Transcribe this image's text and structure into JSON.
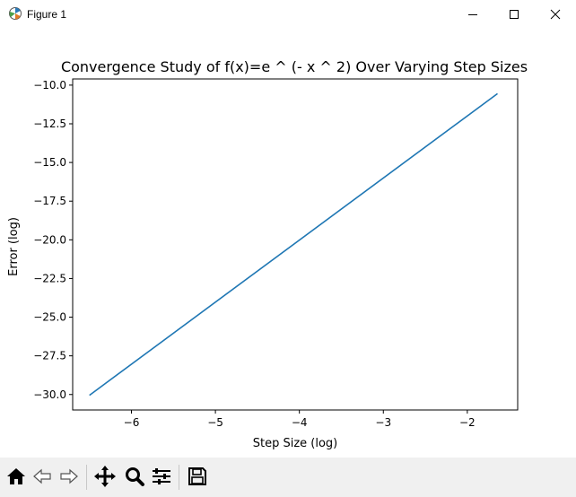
{
  "window": {
    "title": "Figure 1"
  },
  "toolbar": {
    "buttons": [
      {
        "name": "home-icon"
      },
      {
        "name": "back-icon"
      },
      {
        "name": "forward-icon"
      },
      {
        "name": "pan-icon"
      },
      {
        "name": "zoom-icon"
      },
      {
        "name": "configure-subplots-icon"
      },
      {
        "name": "save-icon"
      }
    ]
  },
  "chart_data": {
    "type": "line",
    "title": "Convergence Study of f(x)=e ^ (- x ^ 2) Over Varying Step Sizes",
    "xlabel": "Step Size (log)",
    "ylabel": "Error (log)",
    "xlim": [
      -6.7,
      -1.4
    ],
    "ylim": [
      -31.0,
      -9.6
    ],
    "xticks": [
      -6,
      -5,
      -4,
      -3,
      -2
    ],
    "xtick_labels": [
      "−6",
      "−5",
      "−4",
      "−3",
      "−2"
    ],
    "yticks": [
      -10.0,
      -12.5,
      -15.0,
      -17.5,
      -20.0,
      -22.5,
      -25.0,
      -27.5,
      -30.0
    ],
    "ytick_labels": [
      "−10.0",
      "−12.5",
      "−15.0",
      "−17.5",
      "−20.0",
      "−22.5",
      "−25.0",
      "−27.5",
      "−30.0"
    ],
    "series": [
      {
        "color": "#1f77b4",
        "x": [
          -6.5,
          -1.64
        ],
        "y": [
          -30.05,
          -10.55
        ]
      }
    ],
    "grid": false
  }
}
